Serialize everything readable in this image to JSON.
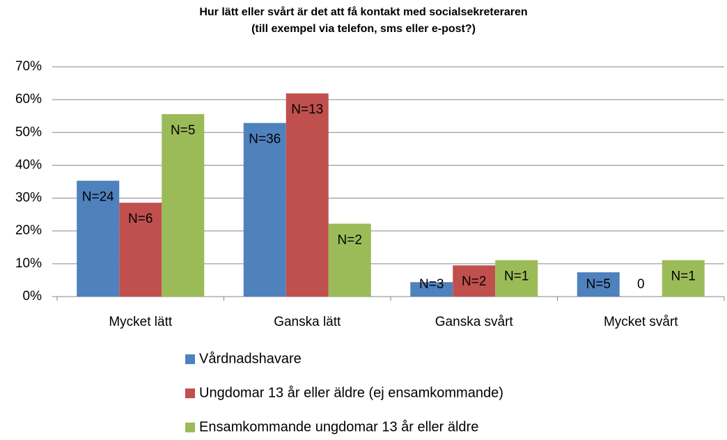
{
  "chart_data": {
    "type": "bar",
    "title": [
      "Hur lätt eller svårt är det att få kontakt med socialsekreteraren",
      "(till exempel via telefon, sms eller e-post?)"
    ],
    "categories": [
      "Mycket lätt",
      "Ganska lätt",
      "Ganska svårt",
      "Mycket svårt"
    ],
    "series": [
      {
        "name": "Vårdnadshavare",
        "color": "#4F81BD",
        "values": [
          35.3,
          52.9,
          4.4,
          7.4
        ],
        "labels": [
          "N=24",
          "N=36",
          "N=3",
          "N=5"
        ]
      },
      {
        "name": "Ungdomar 13 år eller äldre (ej ensamkommande)",
        "color": "#C0504D",
        "values": [
          28.6,
          61.9,
          9.5,
          0
        ],
        "labels": [
          "N=6",
          "N=13",
          "N=2",
          "0"
        ]
      },
      {
        "name": "Ensamkommande ungdomar 13 år eller äldre",
        "color": "#9BBB59",
        "values": [
          55.6,
          22.2,
          11.1,
          11.1
        ],
        "labels": [
          "N=5",
          "N=2",
          "N=1",
          "N=1"
        ]
      }
    ],
    "ylim": [
      0,
      70
    ],
    "yticks": [
      {
        "value": 0,
        "label": "0%"
      },
      {
        "value": 10,
        "label": "10%"
      },
      {
        "value": 20,
        "label": "20%"
      },
      {
        "value": 30,
        "label": "30%"
      },
      {
        "value": 40,
        "label": "40%"
      },
      {
        "value": 50,
        "label": "50%"
      },
      {
        "value": 60,
        "label": "60%"
      },
      {
        "value": 70,
        "label": "70%"
      }
    ],
    "grid": true,
    "legend": "bottom"
  }
}
